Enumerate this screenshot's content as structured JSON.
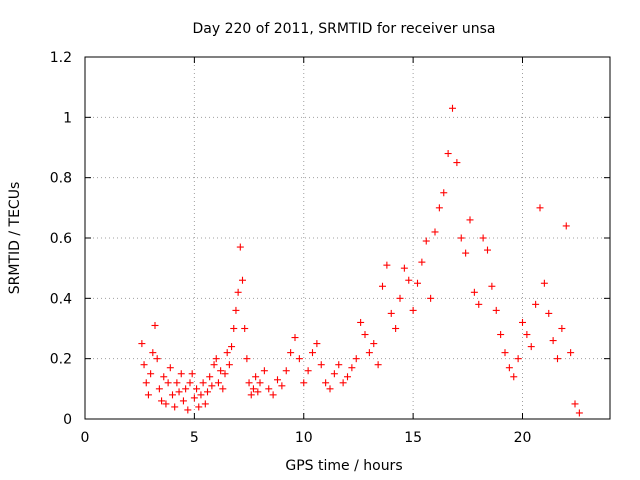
{
  "chart_data": {
    "type": "scatter",
    "title": "Day 220 of 2011, SRMTID for receiver unsa",
    "xlabel": "GPS time / hours",
    "ylabel": "SRMTID / TECUs",
    "xlim": [
      0,
      24
    ],
    "ylim": [
      0,
      1.2
    ],
    "xticks": [
      0,
      5,
      10,
      15,
      20
    ],
    "yticks": [
      0,
      0.2,
      0.4,
      0.6,
      0.8,
      1.0,
      1.2
    ],
    "xtick_labels": [
      "0",
      "5",
      "10",
      "15",
      "20"
    ],
    "ytick_labels": [
      "0",
      "0.2",
      "0.4",
      "0.6",
      "0.8",
      "1",
      "1.2"
    ],
    "grid": true,
    "marker": "+",
    "color": "#ff0000",
    "series": [
      {
        "name": "SRMTID",
        "points": [
          [
            2.6,
            0.25
          ],
          [
            2.7,
            0.18
          ],
          [
            2.8,
            0.12
          ],
          [
            2.9,
            0.08
          ],
          [
            3.0,
            0.15
          ],
          [
            3.1,
            0.22
          ],
          [
            3.2,
            0.31
          ],
          [
            3.3,
            0.2
          ],
          [
            3.4,
            0.1
          ],
          [
            3.5,
            0.06
          ],
          [
            3.6,
            0.14
          ],
          [
            3.7,
            0.05
          ],
          [
            3.8,
            0.12
          ],
          [
            3.9,
            0.17
          ],
          [
            4.0,
            0.08
          ],
          [
            4.1,
            0.04
          ],
          [
            4.2,
            0.12
          ],
          [
            4.3,
            0.09
          ],
          [
            4.4,
            0.15
          ],
          [
            4.5,
            0.06
          ],
          [
            4.6,
            0.1
          ],
          [
            4.7,
            0.03
          ],
          [
            4.8,
            0.12
          ],
          [
            4.9,
            0.15
          ],
          [
            5.0,
            0.07
          ],
          [
            5.1,
            0.1
          ],
          [
            5.2,
            0.04
          ],
          [
            5.3,
            0.08
          ],
          [
            5.4,
            0.12
          ],
          [
            5.5,
            0.05
          ],
          [
            5.6,
            0.09
          ],
          [
            5.7,
            0.14
          ],
          [
            5.8,
            0.11
          ],
          [
            5.9,
            0.18
          ],
          [
            6.0,
            0.2
          ],
          [
            6.1,
            0.12
          ],
          [
            6.2,
            0.16
          ],
          [
            6.3,
            0.1
          ],
          [
            6.4,
            0.15
          ],
          [
            6.5,
            0.22
          ],
          [
            6.6,
            0.18
          ],
          [
            6.7,
            0.24
          ],
          [
            6.8,
            0.3
          ],
          [
            6.9,
            0.36
          ],
          [
            7.0,
            0.42
          ],
          [
            7.1,
            0.57
          ],
          [
            7.2,
            0.46
          ],
          [
            7.3,
            0.3
          ],
          [
            7.4,
            0.2
          ],
          [
            7.5,
            0.12
          ],
          [
            7.6,
            0.08
          ],
          [
            7.7,
            0.1
          ],
          [
            7.8,
            0.14
          ],
          [
            7.9,
            0.09
          ],
          [
            8.0,
            0.12
          ],
          [
            8.2,
            0.16
          ],
          [
            8.4,
            0.1
          ],
          [
            8.6,
            0.08
          ],
          [
            8.8,
            0.13
          ],
          [
            9.0,
            0.11
          ],
          [
            9.2,
            0.16
          ],
          [
            9.4,
            0.22
          ],
          [
            9.6,
            0.27
          ],
          [
            9.8,
            0.2
          ],
          [
            10.0,
            0.12
          ],
          [
            10.2,
            0.16
          ],
          [
            10.4,
            0.22
          ],
          [
            10.6,
            0.25
          ],
          [
            10.8,
            0.18
          ],
          [
            11.0,
            0.12
          ],
          [
            11.2,
            0.1
          ],
          [
            11.4,
            0.15
          ],
          [
            11.6,
            0.18
          ],
          [
            11.8,
            0.12
          ],
          [
            12.0,
            0.14
          ],
          [
            12.2,
            0.17
          ],
          [
            12.4,
            0.2
          ],
          [
            12.6,
            0.32
          ],
          [
            12.8,
            0.28
          ],
          [
            13.0,
            0.22
          ],
          [
            13.2,
            0.25
          ],
          [
            13.4,
            0.18
          ],
          [
            13.6,
            0.44
          ],
          [
            13.8,
            0.51
          ],
          [
            14.0,
            0.35
          ],
          [
            14.2,
            0.3
          ],
          [
            14.4,
            0.4
          ],
          [
            14.6,
            0.5
          ],
          [
            14.8,
            0.46
          ],
          [
            15.0,
            0.36
          ],
          [
            15.2,
            0.45
          ],
          [
            15.4,
            0.52
          ],
          [
            15.6,
            0.59
          ],
          [
            15.8,
            0.4
          ],
          [
            16.0,
            0.62
          ],
          [
            16.2,
            0.7
          ],
          [
            16.4,
            0.75
          ],
          [
            16.6,
            0.88
          ],
          [
            16.8,
            1.03
          ],
          [
            17.0,
            0.85
          ],
          [
            17.2,
            0.6
          ],
          [
            17.4,
            0.55
          ],
          [
            17.6,
            0.66
          ],
          [
            17.8,
            0.42
          ],
          [
            18.0,
            0.38
          ],
          [
            18.2,
            0.6
          ],
          [
            18.4,
            0.56
          ],
          [
            18.6,
            0.44
          ],
          [
            18.8,
            0.36
          ],
          [
            19.0,
            0.28
          ],
          [
            19.2,
            0.22
          ],
          [
            19.4,
            0.17
          ],
          [
            19.6,
            0.14
          ],
          [
            19.8,
            0.2
          ],
          [
            20.0,
            0.32
          ],
          [
            20.2,
            0.28
          ],
          [
            20.4,
            0.24
          ],
          [
            20.6,
            0.38
          ],
          [
            20.8,
            0.7
          ],
          [
            21.0,
            0.45
          ],
          [
            21.2,
            0.35
          ],
          [
            21.4,
            0.26
          ],
          [
            21.6,
            0.2
          ],
          [
            21.8,
            0.3
          ],
          [
            22.0,
            0.64
          ],
          [
            22.2,
            0.22
          ],
          [
            22.4,
            0.05
          ],
          [
            22.6,
            0.02
          ]
        ]
      }
    ]
  }
}
